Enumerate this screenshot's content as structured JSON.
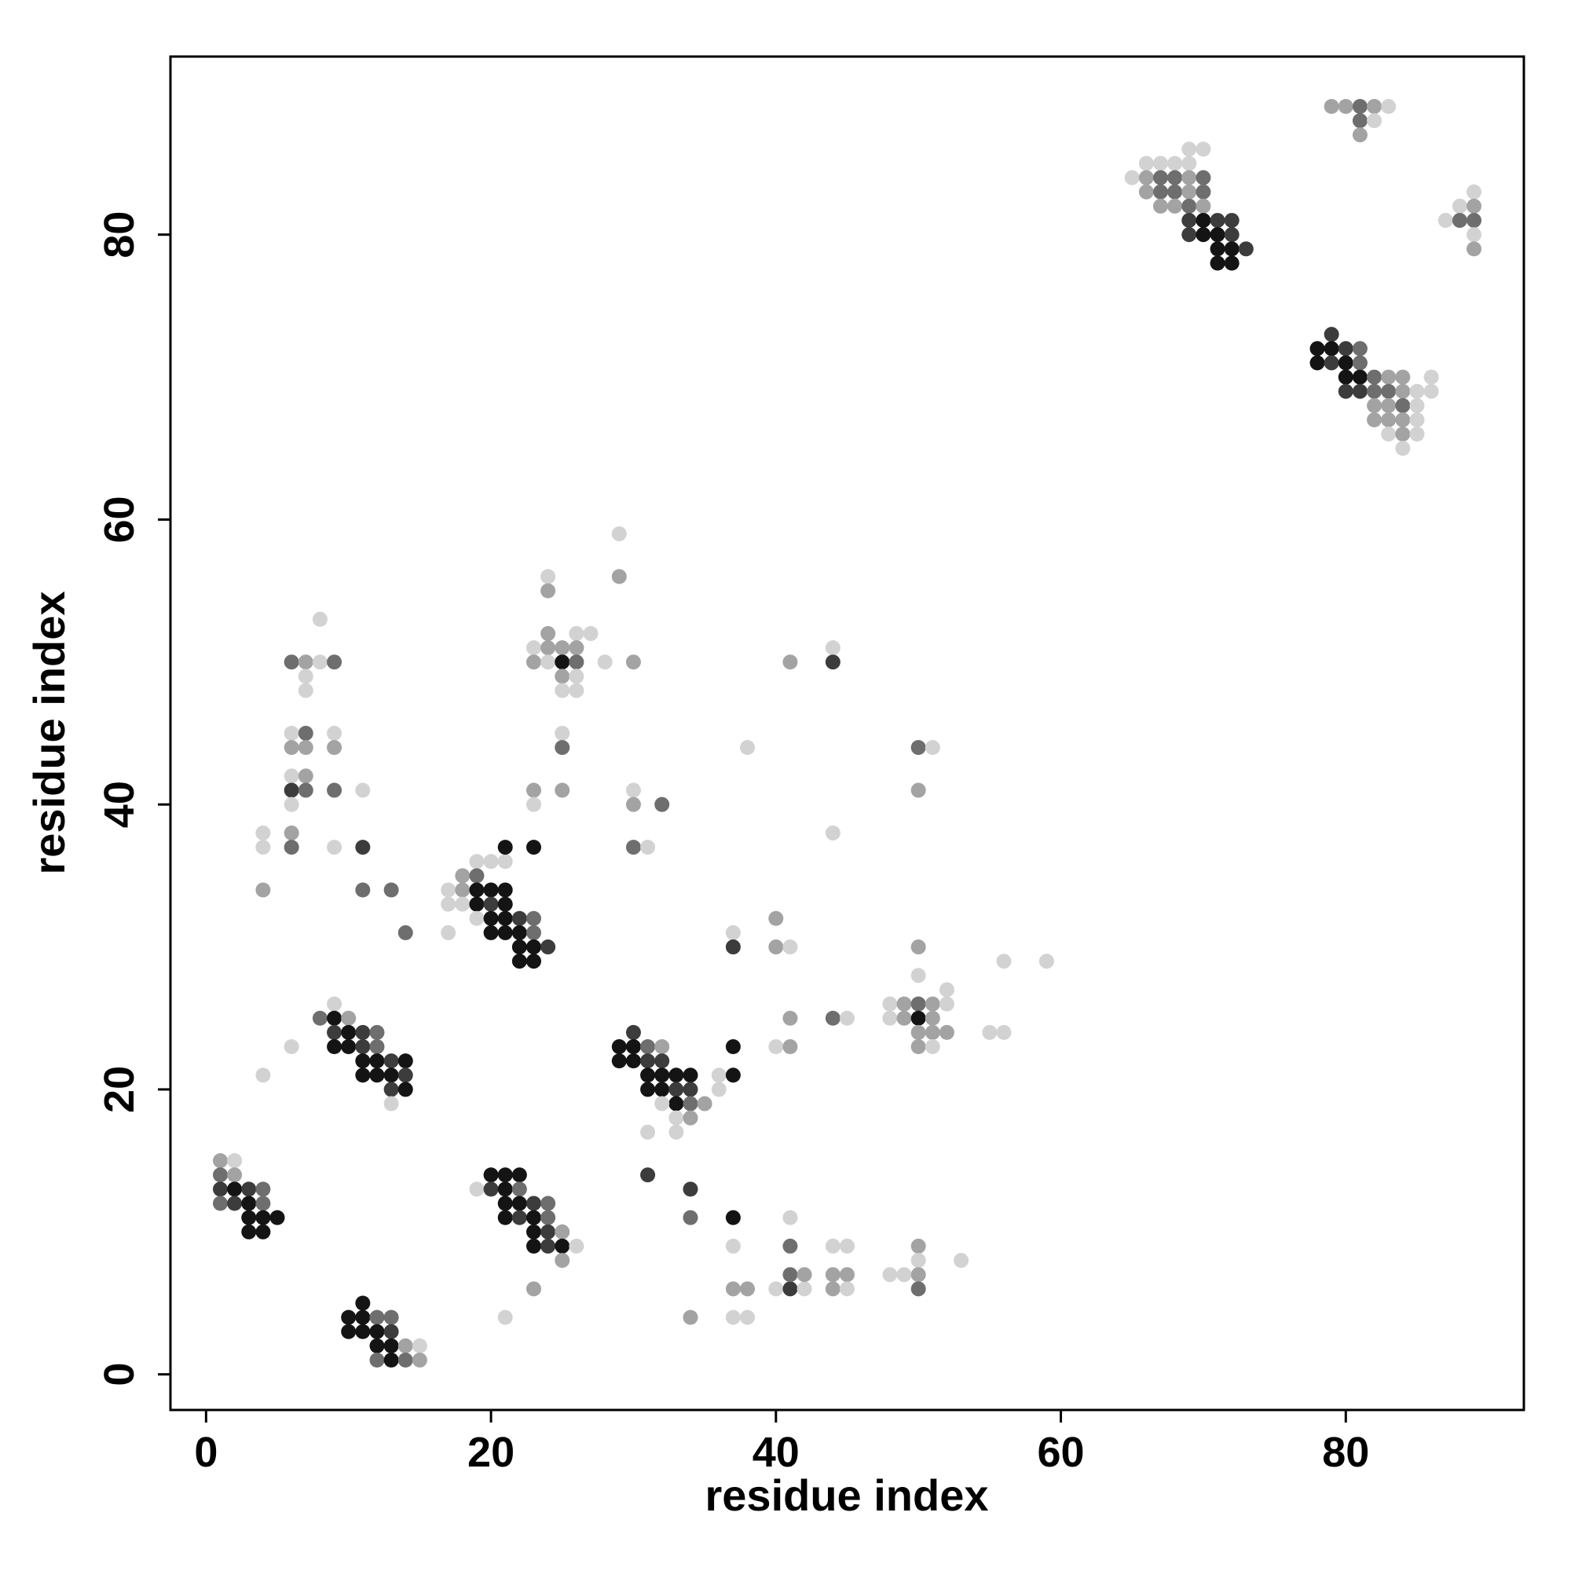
{
  "chart_data": {
    "type": "scatter",
    "xlabel": "residue index",
    "ylabel": "residue index",
    "xlim": [
      -2.5,
      92.5
    ],
    "ylim": [
      -2.5,
      92.5
    ],
    "xticks": [
      0,
      20,
      40,
      60,
      80
    ],
    "yticks": [
      0,
      20,
      40,
      60,
      80
    ],
    "grid": false,
    "legend": "none",
    "marker": "filled-circle",
    "color_encoding": "grayscale; darker = stronger contact",
    "shade_levels": {
      "1": "#141414",
      "2": "#3c3c3c",
      "3": "#6e6e6e",
      "4": "#a3a3a3",
      "5": "#d2d2d2"
    },
    "points": [
      [
        1,
        15,
        4
      ],
      [
        2,
        15,
        5
      ],
      [
        1,
        14,
        3
      ],
      [
        2,
        14,
        4
      ],
      [
        1,
        13,
        2
      ],
      [
        2,
        13,
        1
      ],
      [
        3,
        13,
        2
      ],
      [
        4,
        13,
        3
      ],
      [
        1,
        12,
        3
      ],
      [
        2,
        12,
        2
      ],
      [
        3,
        12,
        1
      ],
      [
        4,
        12,
        3
      ],
      [
        3,
        11,
        1
      ],
      [
        4,
        11,
        1
      ],
      [
        5,
        11,
        1
      ],
      [
        3,
        10,
        1
      ],
      [
        4,
        10,
        1
      ],
      [
        10,
        4,
        1
      ],
      [
        11,
        4,
        1
      ],
      [
        12,
        4,
        3
      ],
      [
        13,
        4,
        3
      ],
      [
        11,
        5,
        1
      ],
      [
        10,
        3,
        1
      ],
      [
        11,
        3,
        1
      ],
      [
        12,
        3,
        1
      ],
      [
        13,
        3,
        2
      ],
      [
        12,
        2,
        1
      ],
      [
        13,
        2,
        1
      ],
      [
        14,
        2,
        4
      ],
      [
        15,
        2,
        5
      ],
      [
        12,
        1,
        3
      ],
      [
        13,
        1,
        1
      ],
      [
        14,
        1,
        3
      ],
      [
        15,
        1,
        4
      ],
      [
        20,
        14,
        1
      ],
      [
        21,
        14,
        1
      ],
      [
        22,
        14,
        1
      ],
      [
        19,
        13,
        5
      ],
      [
        20,
        13,
        2
      ],
      [
        21,
        13,
        1
      ],
      [
        22,
        13,
        3
      ],
      [
        21,
        12,
        1
      ],
      [
        22,
        12,
        1
      ],
      [
        23,
        12,
        2
      ],
      [
        24,
        12,
        3
      ],
      [
        21,
        11,
        1
      ],
      [
        22,
        11,
        2
      ],
      [
        23,
        11,
        1
      ],
      [
        24,
        11,
        3
      ],
      [
        23,
        10,
        1
      ],
      [
        24,
        10,
        2
      ],
      [
        25,
        10,
        4
      ],
      [
        23,
        9,
        1
      ],
      [
        24,
        9,
        2
      ],
      [
        25,
        9,
        1
      ],
      [
        26,
        9,
        5
      ],
      [
        25,
        8,
        4
      ],
      [
        23,
        6,
        4
      ],
      [
        21,
        4,
        5
      ],
      [
        9,
        26,
        5
      ],
      [
        8,
        25,
        3
      ],
      [
        9,
        25,
        1
      ],
      [
        10,
        25,
        4
      ],
      [
        9,
        24,
        2
      ],
      [
        10,
        24,
        1
      ],
      [
        11,
        24,
        2
      ],
      [
        12,
        24,
        3
      ],
      [
        9,
        23,
        1
      ],
      [
        10,
        23,
        1
      ],
      [
        11,
        23,
        2
      ],
      [
        12,
        23,
        3
      ],
      [
        11,
        22,
        1
      ],
      [
        12,
        22,
        1
      ],
      [
        13,
        22,
        2
      ],
      [
        14,
        22,
        1
      ],
      [
        11,
        21,
        1
      ],
      [
        12,
        21,
        1
      ],
      [
        13,
        21,
        1
      ],
      [
        14,
        21,
        2
      ],
      [
        13,
        20,
        2
      ],
      [
        14,
        20,
        1
      ],
      [
        13,
        19,
        5
      ],
      [
        6,
        23,
        5
      ],
      [
        4,
        21,
        5
      ],
      [
        30,
        24,
        2
      ],
      [
        29,
        23,
        1
      ],
      [
        30,
        23,
        1
      ],
      [
        31,
        23,
        3
      ],
      [
        32,
        23,
        4
      ],
      [
        29,
        22,
        1
      ],
      [
        30,
        22,
        1
      ],
      [
        31,
        22,
        2
      ],
      [
        32,
        22,
        2
      ],
      [
        31,
        21,
        1
      ],
      [
        32,
        21,
        1
      ],
      [
        33,
        21,
        1
      ],
      [
        34,
        21,
        1
      ],
      [
        31,
        20,
        1
      ],
      [
        32,
        20,
        1
      ],
      [
        33,
        20,
        2
      ],
      [
        34,
        20,
        2
      ],
      [
        33,
        19,
        1
      ],
      [
        34,
        19,
        3
      ],
      [
        35,
        19,
        4
      ],
      [
        32,
        19,
        5
      ],
      [
        33,
        18,
        5
      ],
      [
        34,
        18,
        4
      ],
      [
        31,
        17,
        5
      ],
      [
        33,
        17,
        5
      ],
      [
        36,
        20,
        5
      ],
      [
        36,
        21,
        5
      ],
      [
        37,
        21,
        1
      ],
      [
        37,
        23,
        1
      ],
      [
        31,
        14,
        2
      ],
      [
        34,
        13,
        2
      ],
      [
        34,
        11,
        3
      ],
      [
        37,
        11,
        1
      ],
      [
        19,
        36,
        5
      ],
      [
        20,
        36,
        5
      ],
      [
        21,
        36,
        5
      ],
      [
        18,
        35,
        4
      ],
      [
        19,
        35,
        3
      ],
      [
        17,
        34,
        5
      ],
      [
        18,
        34,
        4
      ],
      [
        19,
        34,
        1
      ],
      [
        20,
        34,
        1
      ],
      [
        21,
        34,
        1
      ],
      [
        17,
        33,
        5
      ],
      [
        18,
        33,
        5
      ],
      [
        19,
        33,
        1
      ],
      [
        20,
        33,
        2
      ],
      [
        21,
        33,
        1
      ],
      [
        19,
        32,
        5
      ],
      [
        20,
        32,
        1
      ],
      [
        21,
        32,
        1
      ],
      [
        22,
        32,
        2
      ],
      [
        23,
        32,
        3
      ],
      [
        20,
        31,
        1
      ],
      [
        21,
        31,
        1
      ],
      [
        22,
        31,
        1
      ],
      [
        23,
        31,
        3
      ],
      [
        17,
        31,
        5
      ],
      [
        22,
        30,
        1
      ],
      [
        23,
        30,
        1
      ],
      [
        24,
        30,
        2
      ],
      [
        22,
        29,
        1
      ],
      [
        23,
        29,
        1
      ],
      [
        21,
        37,
        1
      ],
      [
        23,
        37,
        1
      ],
      [
        79,
        73,
        2
      ],
      [
        78,
        72,
        1
      ],
      [
        79,
        72,
        1
      ],
      [
        80,
        72,
        2
      ],
      [
        81,
        72,
        3
      ],
      [
        78,
        71,
        1
      ],
      [
        79,
        71,
        2
      ],
      [
        80,
        71,
        1
      ],
      [
        81,
        71,
        3
      ],
      [
        80,
        70,
        1
      ],
      [
        81,
        70,
        1
      ],
      [
        82,
        70,
        3
      ],
      [
        83,
        70,
        4
      ],
      [
        84,
        70,
        4
      ],
      [
        86,
        70,
        5
      ],
      [
        80,
        69,
        2
      ],
      [
        81,
        69,
        2
      ],
      [
        82,
        69,
        3
      ],
      [
        83,
        69,
        3
      ],
      [
        84,
        69,
        4
      ],
      [
        85,
        69,
        5
      ],
      [
        86,
        69,
        5
      ],
      [
        82,
        68,
        4
      ],
      [
        83,
        68,
        4
      ],
      [
        84,
        68,
        3
      ],
      [
        85,
        68,
        5
      ],
      [
        82,
        67,
        4
      ],
      [
        83,
        67,
        4
      ],
      [
        84,
        67,
        4
      ],
      [
        85,
        67,
        5
      ],
      [
        83,
        66,
        5
      ],
      [
        84,
        66,
        4
      ],
      [
        85,
        66,
        5
      ],
      [
        84,
        65,
        5
      ],
      [
        69,
        86,
        5
      ],
      [
        70,
        86,
        5
      ],
      [
        66,
        85,
        5
      ],
      [
        67,
        85,
        5
      ],
      [
        68,
        85,
        5
      ],
      [
        69,
        85,
        5
      ],
      [
        65,
        84,
        5
      ],
      [
        66,
        84,
        4
      ],
      [
        67,
        84,
        3
      ],
      [
        68,
        84,
        3
      ],
      [
        69,
        84,
        4
      ],
      [
        70,
        84,
        3
      ],
      [
        66,
        83,
        4
      ],
      [
        67,
        83,
        3
      ],
      [
        68,
        83,
        3
      ],
      [
        69,
        83,
        4
      ],
      [
        70,
        83,
        3
      ],
      [
        67,
        82,
        4
      ],
      [
        68,
        82,
        4
      ],
      [
        69,
        82,
        3
      ],
      [
        70,
        82,
        4
      ],
      [
        69,
        81,
        2
      ],
      [
        70,
        81,
        1
      ],
      [
        71,
        81,
        2
      ],
      [
        72,
        81,
        2
      ],
      [
        69,
        80,
        2
      ],
      [
        70,
        80,
        1
      ],
      [
        71,
        80,
        1
      ],
      [
        72,
        80,
        2
      ],
      [
        71,
        79,
        1
      ],
      [
        72,
        79,
        1
      ],
      [
        73,
        79,
        2
      ],
      [
        71,
        78,
        1
      ],
      [
        72,
        78,
        1
      ],
      [
        79,
        89,
        4
      ],
      [
        80,
        89,
        4
      ],
      [
        81,
        89,
        3
      ],
      [
        82,
        89,
        4
      ],
      [
        83,
        89,
        5
      ],
      [
        81,
        88,
        3
      ],
      [
        82,
        88,
        5
      ],
      [
        81,
        87,
        4
      ],
      [
        89,
        83,
        5
      ],
      [
        88,
        82,
        5
      ],
      [
        89,
        82,
        4
      ],
      [
        87,
        81,
        5
      ],
      [
        88,
        81,
        3
      ],
      [
        89,
        81,
        3
      ],
      [
        89,
        80,
        5
      ],
      [
        89,
        79,
        4
      ],
      [
        8,
        53,
        5
      ],
      [
        6,
        50,
        3
      ],
      [
        7,
        50,
        4
      ],
      [
        8,
        50,
        5
      ],
      [
        9,
        50,
        3
      ],
      [
        7,
        49,
        5
      ],
      [
        7,
        48,
        5
      ],
      [
        6,
        45,
        5
      ],
      [
        7,
        45,
        3
      ],
      [
        9,
        45,
        5
      ],
      [
        6,
        44,
        4
      ],
      [
        7,
        44,
        4
      ],
      [
        9,
        44,
        4
      ],
      [
        6,
        42,
        5
      ],
      [
        7,
        42,
        4
      ],
      [
        6,
        41,
        2
      ],
      [
        7,
        41,
        3
      ],
      [
        9,
        41,
        3
      ],
      [
        11,
        41,
        5
      ],
      [
        6,
        40,
        5
      ],
      [
        4,
        38,
        5
      ],
      [
        6,
        38,
        4
      ],
      [
        4,
        37,
        5
      ],
      [
        6,
        37,
        3
      ],
      [
        9,
        37,
        5
      ],
      [
        11,
        37,
        2
      ],
      [
        4,
        34,
        4
      ],
      [
        11,
        34,
        3
      ],
      [
        13,
        34,
        3
      ],
      [
        14,
        31,
        3
      ],
      [
        24,
        56,
        5
      ],
      [
        24,
        55,
        4
      ],
      [
        24,
        52,
        4
      ],
      [
        26,
        52,
        5
      ],
      [
        27,
        52,
        5
      ],
      [
        23,
        51,
        5
      ],
      [
        24,
        51,
        4
      ],
      [
        25,
        51,
        4
      ],
      [
        26,
        51,
        4
      ],
      [
        23,
        50,
        4
      ],
      [
        24,
        50,
        5
      ],
      [
        25,
        50,
        1
      ],
      [
        26,
        50,
        3
      ],
      [
        28,
        50,
        5
      ],
      [
        25,
        49,
        4
      ],
      [
        26,
        49,
        5
      ],
      [
        25,
        48,
        5
      ],
      [
        26,
        48,
        5
      ],
      [
        25,
        45,
        5
      ],
      [
        25,
        44,
        3
      ],
      [
        23,
        41,
        4
      ],
      [
        25,
        41,
        4
      ],
      [
        23,
        40,
        5
      ],
      [
        29,
        59,
        5
      ],
      [
        29,
        56,
        4
      ],
      [
        30,
        50,
        4
      ],
      [
        30,
        41,
        5
      ],
      [
        30,
        40,
        4
      ],
      [
        32,
        40,
        3
      ],
      [
        30,
        37,
        3
      ],
      [
        31,
        37,
        5
      ],
      [
        41,
        50,
        4
      ],
      [
        44,
        51,
        5
      ],
      [
        44,
        50,
        2
      ],
      [
        38,
        44,
        5
      ],
      [
        44,
        38,
        5
      ],
      [
        50,
        44,
        3
      ],
      [
        51,
        44,
        5
      ],
      [
        50,
        41,
        4
      ],
      [
        37,
        31,
        5
      ],
      [
        37,
        30,
        2
      ],
      [
        40,
        32,
        4
      ],
      [
        40,
        30,
        4
      ],
      [
        41,
        30,
        5
      ],
      [
        41,
        25,
        4
      ],
      [
        44,
        25,
        3
      ],
      [
        45,
        25,
        5
      ],
      [
        40,
        23,
        5
      ],
      [
        41,
        23,
        4
      ],
      [
        50,
        30,
        4
      ],
      [
        56,
        29,
        5
      ],
      [
        59,
        29,
        5
      ],
      [
        50,
        28,
        5
      ],
      [
        52,
        27,
        5
      ],
      [
        48,
        26,
        5
      ],
      [
        49,
        26,
        4
      ],
      [
        50,
        26,
        3
      ],
      [
        51,
        26,
        4
      ],
      [
        52,
        26,
        5
      ],
      [
        48,
        25,
        5
      ],
      [
        49,
        25,
        4
      ],
      [
        50,
        25,
        1
      ],
      [
        51,
        25,
        4
      ],
      [
        50,
        24,
        4
      ],
      [
        51,
        24,
        4
      ],
      [
        52,
        24,
        4
      ],
      [
        55,
        24,
        5
      ],
      [
        56,
        24,
        5
      ],
      [
        50,
        23,
        4
      ],
      [
        51,
        23,
        5
      ],
      [
        37,
        9,
        5
      ],
      [
        41,
        11,
        5
      ],
      [
        41,
        9,
        3
      ],
      [
        44,
        9,
        5
      ],
      [
        45,
        9,
        5
      ],
      [
        50,
        9,
        4
      ],
      [
        50,
        8,
        5
      ],
      [
        53,
        8,
        5
      ],
      [
        37,
        6,
        4
      ],
      [
        38,
        6,
        4
      ],
      [
        40,
        6,
        5
      ],
      [
        41,
        6,
        2
      ],
      [
        42,
        6,
        5
      ],
      [
        41,
        7,
        3
      ],
      [
        42,
        7,
        4
      ],
      [
        44,
        7,
        4
      ],
      [
        45,
        7,
        4
      ],
      [
        44,
        6,
        4
      ],
      [
        45,
        6,
        5
      ],
      [
        48,
        7,
        5
      ],
      [
        49,
        7,
        5
      ],
      [
        50,
        7,
        4
      ],
      [
        50,
        6,
        3
      ],
      [
        34,
        4,
        4
      ],
      [
        37,
        4,
        5
      ],
      [
        38,
        4,
        5
      ]
    ]
  }
}
